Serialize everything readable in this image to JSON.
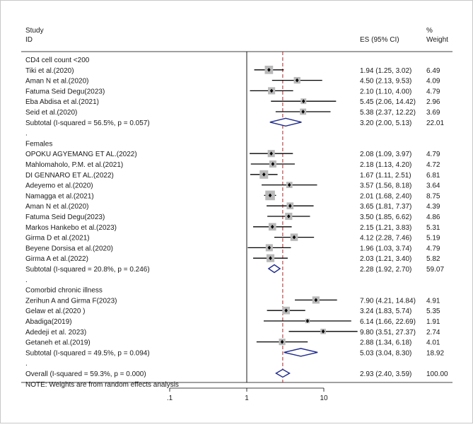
{
  "chart_data": {
    "type": "forest",
    "header": {
      "study_line1": "Study",
      "study_line2": "ID",
      "es_label": "ES (95% CI)",
      "weight_line1": "%",
      "weight_line2": "Weight"
    },
    "x_scale": "log",
    "x_ticks": [
      {
        "value": 0.1,
        "label": ".1"
      },
      {
        "value": 1,
        "label": "1"
      },
      {
        "value": 10,
        "label": "10"
      }
    ],
    "null_line": 1,
    "overall_es": 2.93,
    "rows": [
      {
        "kind": "group",
        "label": "CD4 cell count <200"
      },
      {
        "kind": "study",
        "label": "Tiki et al.(2020)",
        "es": 1.94,
        "lo": 1.25,
        "hi": 3.02,
        "weight": 6.49,
        "ci_text": "1.94 (1.25, 3.02)",
        "w_text": "6.49"
      },
      {
        "kind": "study",
        "label": "Aman N et al.(2020)",
        "es": 4.5,
        "lo": 2.13,
        "hi": 9.53,
        "weight": 4.09,
        "ci_text": "4.50 (2.13, 9.53)",
        "w_text": "4.09"
      },
      {
        "kind": "study",
        "label": "Fatuma Seid Degu(2023)",
        "es": 2.1,
        "lo": 1.1,
        "hi": 4.0,
        "weight": 4.79,
        "ci_text": "2.10 (1.10, 4.00)",
        "w_text": "4.79"
      },
      {
        "kind": "study",
        "label": "Eba Abdisa et al.(2021)",
        "es": 5.45,
        "lo": 2.06,
        "hi": 14.42,
        "weight": 2.96,
        "ci_text": "5.45 (2.06, 14.42)",
        "w_text": "2.96"
      },
      {
        "kind": "study",
        "label": "Seid et al.(2020)",
        "es": 5.38,
        "lo": 2.37,
        "hi": 12.22,
        "weight": 3.69,
        "ci_text": "5.38 (2.37, 12.22)",
        "w_text": "3.69"
      },
      {
        "kind": "subtotal",
        "label": "Subtotal  (I-squared = 56.5%, p = 0.057)",
        "es": 3.2,
        "lo": 2.0,
        "hi": 5.13,
        "weight": 22.01,
        "ci_text": "3.20 (2.00, 5.13)",
        "w_text": "22.01"
      },
      {
        "kind": "dot",
        "label": "."
      },
      {
        "kind": "group",
        "label": "Females"
      },
      {
        "kind": "study",
        "label": "OPOKU AGYEMANG ET AL.(2022)",
        "es": 2.08,
        "lo": 1.09,
        "hi": 3.97,
        "weight": 4.79,
        "ci_text": "2.08 (1.09, 3.97)",
        "w_text": "4.79"
      },
      {
        "kind": "study",
        "label": "Mahlomaholo, P.M. et al.(2021)",
        "es": 2.18,
        "lo": 1.13,
        "hi": 4.2,
        "weight": 4.72,
        "ci_text": "2.18 (1.13, 4.20)",
        "w_text": "4.72"
      },
      {
        "kind": "study",
        "label": "DI GENNARO ET AL.(2022)",
        "es": 1.67,
        "lo": 1.11,
        "hi": 2.51,
        "weight": 6.81,
        "ci_text": "1.67 (1.11, 2.51)",
        "w_text": "6.81"
      },
      {
        "kind": "study",
        "label": "Adeyemo et al.(2020)",
        "es": 3.57,
        "lo": 1.56,
        "hi": 8.18,
        "weight": 3.64,
        "ci_text": "3.57 (1.56, 8.18)",
        "w_text": "3.64"
      },
      {
        "kind": "study",
        "label": "Namagga et al.(2021)",
        "es": 2.01,
        "lo": 1.68,
        "hi": 2.4,
        "weight": 8.75,
        "ci_text": "2.01 (1.68, 2.40)",
        "w_text": "8.75"
      },
      {
        "kind": "study",
        "label": "Aman N et al.(2020)",
        "es": 3.65,
        "lo": 1.81,
        "hi": 7.37,
        "weight": 4.39,
        "ci_text": "3.65 (1.81, 7.37)",
        "w_text": "4.39"
      },
      {
        "kind": "study",
        "label": "Fatuma Seid Degu(2023)",
        "es": 3.5,
        "lo": 1.85,
        "hi": 6.62,
        "weight": 4.86,
        "ci_text": "3.50 (1.85, 6.62)",
        "w_text": "4.86"
      },
      {
        "kind": "study",
        "label": "Markos Hankebo et al.(2023)",
        "es": 2.15,
        "lo": 1.21,
        "hi": 3.83,
        "weight": 5.31,
        "ci_text": "2.15 (1.21, 3.83)",
        "w_text": "5.31"
      },
      {
        "kind": "study",
        "label": "Girma D et al.(2021)",
        "es": 4.12,
        "lo": 2.28,
        "hi": 7.46,
        "weight": 5.19,
        "ci_text": "4.12 (2.28, 7.46)",
        "w_text": "5.19"
      },
      {
        "kind": "study",
        "label": "Beyene Dorsisa et al.(2020)",
        "es": 1.96,
        "lo": 1.03,
        "hi": 3.74,
        "weight": 4.79,
        "ci_text": "1.96 (1.03, 3.74)",
        "w_text": "4.79"
      },
      {
        "kind": "study",
        "label": "Girma A et al.(2022)",
        "es": 2.03,
        "lo": 1.21,
        "hi": 3.4,
        "weight": 5.82,
        "ci_text": "2.03 (1.21, 3.40)",
        "w_text": "5.82"
      },
      {
        "kind": "subtotal",
        "label": "Subtotal  (I-squared = 20.8%, p = 0.246)",
        "es": 2.28,
        "lo": 1.92,
        "hi": 2.7,
        "weight": 59.07,
        "ci_text": "2.28 (1.92, 2.70)",
        "w_text": "59.07"
      },
      {
        "kind": "dot",
        "label": "."
      },
      {
        "kind": "group",
        "label": "Comorbid chronic illness"
      },
      {
        "kind": "study",
        "label": "Zerihun A and Girma F(2023)",
        "es": 7.9,
        "lo": 4.21,
        "hi": 14.84,
        "weight": 4.91,
        "ci_text": "7.90 (4.21, 14.84)",
        "w_text": "4.91"
      },
      {
        "kind": "study",
        "label": "Gelaw et al.(2020 )",
        "es": 3.24,
        "lo": 1.83,
        "hi": 5.74,
        "weight": 5.35,
        "ci_text": "3.24 (1.83, 5.74)",
        "w_text": "5.35"
      },
      {
        "kind": "study",
        "label": "Abadiga(2019)",
        "es": 6.14,
        "lo": 1.66,
        "hi": 22.69,
        "weight": 1.91,
        "ci_text": "6.14 (1.66, 22.69)",
        "w_text": "1.91"
      },
      {
        "kind": "study",
        "label": "Adedeji et al. 2023)",
        "es": 9.8,
        "lo": 3.51,
        "hi": 27.37,
        "weight": 2.74,
        "ci_text": "9.80 (3.51, 27.37)",
        "w_text": "2.74"
      },
      {
        "kind": "study",
        "label": "Getaneh et al.(2019)",
        "es": 2.88,
        "lo": 1.34,
        "hi": 6.18,
        "weight": 4.01,
        "ci_text": "2.88 (1.34, 6.18)",
        "w_text": "4.01"
      },
      {
        "kind": "subtotal",
        "label": "Subtotal  (I-squared = 49.5%, p = 0.094)",
        "es": 5.03,
        "lo": 3.04,
        "hi": 8.3,
        "weight": 18.92,
        "ci_text": "5.03 (3.04, 8.30)",
        "w_text": "18.92"
      },
      {
        "kind": "dot",
        "label": "."
      },
      {
        "kind": "overall",
        "label": "Overall  (I-squared = 59.3%, p = 0.000)",
        "es": 2.93,
        "lo": 2.4,
        "hi": 3.59,
        "weight": 100.0,
        "ci_text": "2.93 (2.40, 3.59)",
        "w_text": "100.00"
      },
      {
        "kind": "note",
        "label": "NOTE: Weights are from random effects analysis"
      }
    ]
  }
}
